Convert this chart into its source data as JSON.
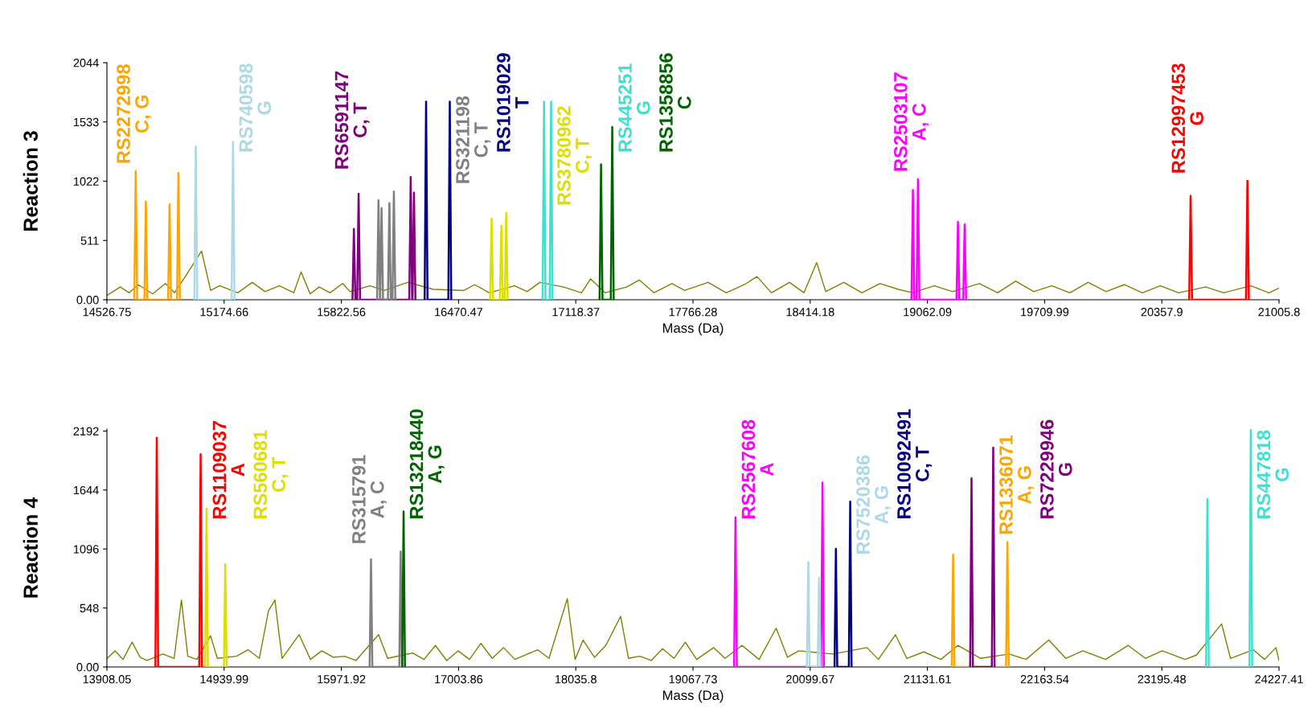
{
  "chart_data": [
    {
      "type": "line",
      "xlabel": "Mass (Da)",
      "ylabel": "Reaction 3",
      "grid": false,
      "legend": false,
      "marker": "none",
      "line_style": "solid",
      "xlim": [
        14526.75,
        21005.8
      ],
      "xticks": [
        14526.75,
        15174.66,
        15822.56,
        16470.47,
        17118.37,
        17766.28,
        18414.18,
        19062.09,
        19709.99,
        20357.9,
        21005.8
      ],
      "ylim": [
        0,
        2044
      ],
      "yticks": [
        {
          "value": 0,
          "label": "0.00"
        },
        511,
        1022,
        1533,
        2044
      ],
      "series": [
        {
          "color": "#808000",
          "x": [
            14530,
            14600,
            14650,
            14700,
            14780,
            14850,
            14900,
            14960,
            15050,
            15100,
            15150,
            15250,
            15330,
            15400,
            15480,
            15560,
            15600,
            15650,
            15700,
            15760,
            15830,
            15870,
            15980,
            16060,
            16190,
            16330,
            16500,
            16560,
            16640,
            16780,
            16850,
            16920,
            17050,
            17150,
            17200,
            17280,
            17400,
            17470,
            17550,
            17650,
            17720,
            17850,
            17950,
            18050,
            18120,
            18200,
            18300,
            18380,
            18450,
            18500,
            18600,
            18700,
            18800,
            18900,
            18980,
            19100,
            19200,
            19350,
            19450,
            19550,
            19650,
            19750,
            19850,
            19950,
            20050,
            20150,
            20250,
            20350,
            20450,
            20600,
            20700,
            20850,
            20950,
            21005
          ],
          "values": [
            40,
            110,
            60,
            130,
            50,
            140,
            60,
            200,
            420,
            80,
            120,
            60,
            150,
            70,
            120,
            60,
            240,
            50,
            110,
            60,
            140,
            70,
            120,
            80,
            150,
            90,
            80,
            130,
            60,
            120,
            70,
            150,
            110,
            60,
            180,
            60,
            110,
            170,
            60,
            140,
            80,
            150,
            60,
            130,
            200,
            60,
            150,
            60,
            320,
            70,
            150,
            60,
            140,
            90,
            60,
            120,
            70,
            140,
            60,
            160,
            70,
            120,
            60,
            150,
            70,
            130,
            60,
            120,
            60,
            110,
            60,
            120,
            60,
            100
          ]
        },
        {
          "name": "RS2272998\nC, G",
          "color": "#ffa500",
          "x": [
            14678,
            14686,
            14694,
            14734,
            14742,
            14750,
            14865,
            14873,
            14881,
            14914,
            14922,
            14930
          ],
          "values": [
            0,
            1109,
            0,
            0,
            847,
            0,
            0,
            823,
            0,
            0,
            1093,
            0
          ]
        },
        {
          "name": "RS740598\nG",
          "color": "#add8e6",
          "x": [
            15010,
            15018,
            15026,
            15216,
            15224,
            15232
          ],
          "values": [
            0,
            1322,
            0,
            0,
            1362,
            0
          ]
        },
        {
          "name": "RS6591147\nC, T",
          "color": "#800080",
          "x": [
            15884,
            15892,
            15900,
            15910,
            15918,
            15926,
            16198,
            16206,
            16214,
            16216,
            16224,
            16232
          ],
          "values": [
            0,
            612,
            0,
            0,
            914,
            0,
            0,
            1059,
            0,
            0,
            924,
            0
          ]
        },
        {
          "name": "RS321198\nC, T",
          "color": "#808080",
          "x": [
            16020,
            16028,
            16036,
            16037,
            16045,
            16053,
            16080,
            16088,
            16096,
            16105,
            16113,
            16121
          ],
          "values": [
            0,
            858,
            0,
            0,
            790,
            0,
            0,
            834,
            0,
            0,
            934,
            0
          ]
        },
        {
          "name": "RS1019029\nT",
          "color": "#000080",
          "x": [
            16283,
            16291,
            16299,
            16414,
            16422,
            16430
          ],
          "values": [
            0,
            1708,
            0,
            0,
            1708,
            0
          ]
        },
        {
          "name": "RS3780962\nC, T",
          "color": "#dede00",
          "x": [
            16645,
            16653,
            16661,
            16699,
            16707,
            16715,
            16726,
            16734,
            16742
          ],
          "values": [
            0,
            699,
            0,
            0,
            638,
            0,
            0,
            749,
            0
          ]
        },
        {
          "name": "RS445251\nG",
          "color": "#40e0d0",
          "x": [
            16935,
            16943,
            16951,
            16974,
            16982,
            16990
          ],
          "values": [
            0,
            1708,
            0,
            0,
            1708,
            0
          ]
        },
        {
          "name": "RS1358856\nC",
          "color": "#006400",
          "x": [
            17250,
            17258,
            17266,
            17312,
            17320,
            17328
          ],
          "values": [
            0,
            1167,
            0,
            0,
            1489,
            0
          ]
        },
        {
          "name": "RS2503107\nA, C",
          "color": "#ff00ff",
          "x": [
            18974,
            18982,
            18990,
            19002,
            19010,
            19018,
            19223,
            19231,
            19239,
            19260,
            19268,
            19276
          ],
          "values": [
            0,
            946,
            0,
            0,
            1040,
            0,
            0,
            672,
            0,
            0,
            650,
            0
          ]
        },
        {
          "name": "RS12997453\nG",
          "color": "#ff0000",
          "x": [
            20509,
            20517,
            20525,
            20823,
            20831,
            20839
          ],
          "values": [
            0,
            896,
            0,
            0,
            1025,
            0
          ]
        }
      ]
    },
    {
      "type": "line",
      "xlabel": "Mass (Da)",
      "ylabel": "Reaction 4",
      "grid": false,
      "legend": false,
      "marker": "none",
      "line_style": "solid",
      "xlim": [
        13908.05,
        24227.41
      ],
      "xticks": [
        13908.05,
        14939.99,
        15971.92,
        17003.86,
        18035.8,
        19067.73,
        20099.67,
        21131.61,
        22163.54,
        23195.48,
        24227.41
      ],
      "ylim": [
        0,
        2210
      ],
      "yticks": [
        {
          "value": 0,
          "label": "0.00"
        },
        548,
        1096,
        1644,
        2192
      ],
      "series": [
        {
          "color": "#808000",
          "x": [
            13910,
            13980,
            14050,
            14130,
            14200,
            14260,
            14400,
            14500,
            14564,
            14620,
            14700,
            14820,
            14880,
            15050,
            15150,
            15250,
            15330,
            15387,
            15450,
            15600,
            15700,
            15800,
            15900,
            16000,
            16100,
            16300,
            16380,
            16600,
            16700,
            16800,
            16900,
            17000,
            17100,
            17200,
            17300,
            17400,
            17500,
            17700,
            17800,
            17961,
            18030,
            18100,
            18200,
            18300,
            18431,
            18500,
            18600,
            18700,
            18800,
            18900,
            19000,
            19100,
            19250,
            19350,
            19500,
            19650,
            19800,
            19900,
            20000,
            20300,
            20600,
            20700,
            20850,
            20950,
            21100,
            21250,
            21400,
            21600,
            21850,
            22000,
            22200,
            22350,
            22500,
            22700,
            22900,
            23050,
            23200,
            23400,
            23500,
            23722,
            23800,
            24000,
            24100,
            24200,
            24227
          ],
          "values": [
            80,
            150,
            70,
            230,
            90,
            60,
            120,
            80,
            622,
            100,
            70,
            290,
            80,
            100,
            160,
            80,
            520,
            622,
            80,
            300,
            70,
            150,
            90,
            100,
            60,
            300,
            80,
            130,
            70,
            200,
            60,
            150,
            70,
            220,
            80,
            180,
            70,
            160,
            80,
            634,
            70,
            250,
            90,
            200,
            470,
            80,
            100,
            60,
            170,
            80,
            230,
            70,
            180,
            80,
            200,
            70,
            360,
            90,
            150,
            120,
            180,
            70,
            300,
            80,
            140,
            70,
            200,
            80,
            120,
            70,
            250,
            80,
            150,
            70,
            200,
            80,
            150,
            70,
            110,
            400,
            80,
            160,
            70,
            180,
            60
          ]
        },
        {
          "name": "RS1109037\nA",
          "color": "#ff0000",
          "x": [
            14335,
            14347,
            14359,
            14721,
            14733,
            14745
          ],
          "values": [
            0,
            2130,
            0,
            0,
            1977,
            0
          ]
        },
        {
          "name": "RS560681\nC, T",
          "color": "#dede00",
          "x": [
            14773,
            14785,
            14797,
            14938,
            14950,
            14962
          ],
          "values": [
            0,
            1470,
            0,
            0,
            955,
            0
          ]
        },
        {
          "name": "RS315791\nA, C",
          "color": "#808080",
          "x": [
            16221,
            16233,
            16245,
            16482,
            16494,
            16506
          ],
          "values": [
            0,
            1000,
            0,
            0,
            1073,
            0
          ]
        },
        {
          "name": "RS13218440\nA, G",
          "color": "#006400",
          "x": [
            16508,
            16520,
            16532
          ],
          "values": [
            0,
            1444,
            0
          ]
        },
        {
          "name": "RS2567608\nA",
          "color": "#ff00ff",
          "x": [
            19430,
            19442,
            19454,
            20196,
            20208,
            20220
          ],
          "values": [
            0,
            1391,
            0,
            0,
            1714,
            0
          ]
        },
        {
          "name": "RS7520386\nA, G",
          "color": "#add8e6",
          "x": [
            20071,
            20083,
            20095,
            20166,
            20178,
            20190
          ],
          "values": [
            0,
            975,
            0,
            0,
            828,
            0
          ]
        },
        {
          "name": "RS10092491\nC, T",
          "color": "#000080",
          "x": [
            20314,
            20326,
            20338,
            20440,
            20452,
            20464
          ],
          "values": [
            0,
            1098,
            0,
            0,
            1537,
            0
          ]
        },
        {
          "name": "RS1336071\nA, G",
          "color": "#ffa500",
          "x": [
            21346,
            21358,
            21370,
            21824,
            21836,
            21848
          ],
          "values": [
            0,
            1044,
            0,
            0,
            1160,
            0
          ]
        },
        {
          "name": "RS7229946\nG",
          "color": "#800080",
          "x": [
            21508,
            21520,
            21532,
            21699,
            21711,
            21723
          ],
          "values": [
            0,
            1753,
            0,
            0,
            2039,
            0
          ]
        },
        {
          "name": "RS447818\nG",
          "color": "#40e0d0",
          "x": [
            23585,
            23597,
            23609,
            23967,
            23979,
            23991
          ],
          "values": [
            0,
            1560,
            0,
            0,
            2200,
            0
          ]
        }
      ]
    }
  ]
}
